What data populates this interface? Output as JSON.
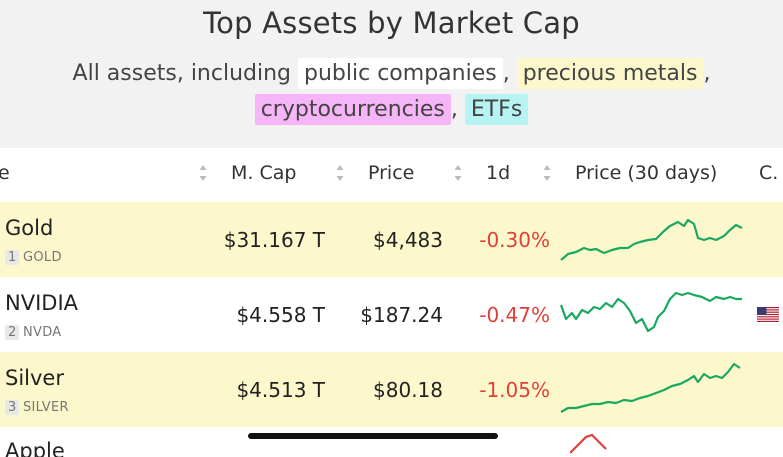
{
  "header": {
    "title": "Top Assets by Market Cap",
    "subtitle_prefix": "All assets, including",
    "chips": [
      "public companies",
      "precious metals",
      "cryptocurrencies",
      "ETFs"
    ],
    "sep": ","
  },
  "table": {
    "columns": [
      "e",
      "M. Cap",
      "Price",
      "1d",
      "Price (30 days)",
      "C."
    ],
    "rows": [
      {
        "name": "Gold",
        "rank": "1",
        "ticker": "GOLD",
        "mcap": "$31.167 T",
        "price": "$4,483",
        "change": "-0.30%",
        "spark_color": "#1aa860"
      },
      {
        "name": "NVIDIA",
        "rank": "2",
        "ticker": "NVDA",
        "mcap": "$4.558 T",
        "price": "$187.24",
        "change": "-0.47%",
        "spark_color": "#1aa860",
        "country_icon": "us-flag-icon"
      },
      {
        "name": "Silver",
        "rank": "3",
        "ticker": "SILVER",
        "mcap": "$4.513 T",
        "price": "$80.18",
        "change": "-1.05%",
        "spark_color": "#1aa860"
      }
    ],
    "partial_row": {
      "name": "Apple",
      "spark_color": "#e0403a"
    }
  },
  "colors": {
    "negative": "#e0403a",
    "positive_spark": "#1aa860",
    "highlight": "#fdf8cc"
  }
}
